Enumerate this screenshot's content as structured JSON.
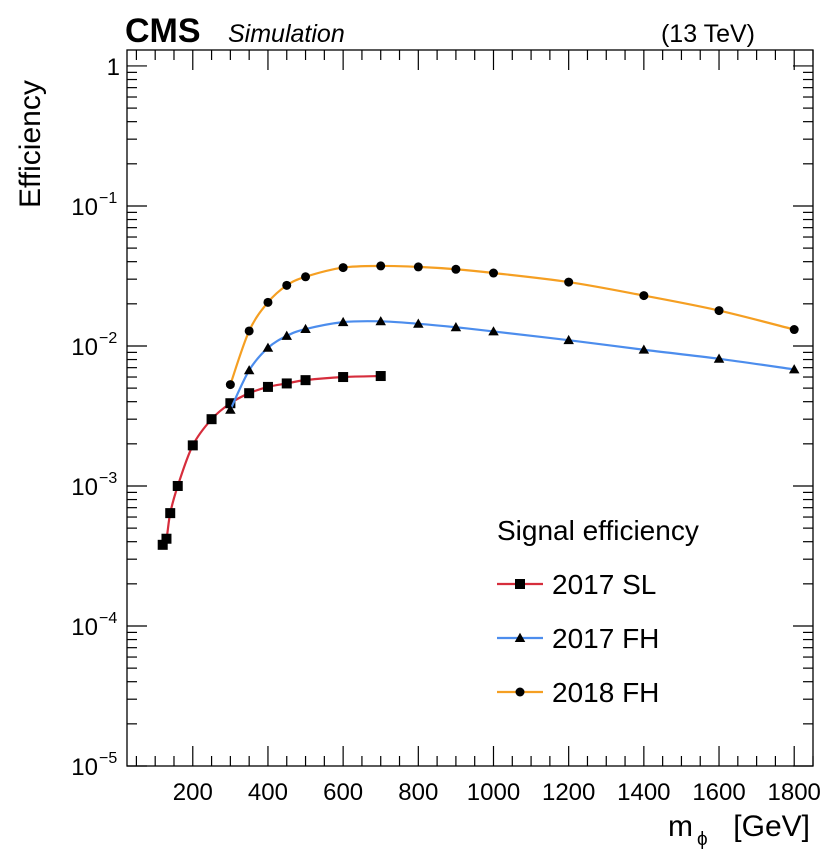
{
  "header": {
    "experiment": "CMS",
    "qualifier": "Simulation",
    "energy": "(13 TeV)"
  },
  "chart_data": {
    "type": "line",
    "xlabel_main": "m",
    "xlabel_sub": "ϕ",
    "xlabel_unit": "[GeV]",
    "ylabel": "Efficiency",
    "y_scale": "log",
    "xlim": [
      25,
      1850
    ],
    "ylim": [
      1e-05,
      1.3
    ],
    "x_ticks": [
      200,
      400,
      600,
      800,
      1000,
      1200,
      1400,
      1600,
      1800
    ],
    "y_ticks": [
      {
        "value": 1e-05,
        "base": "10",
        "exp": "−5"
      },
      {
        "value": 0.0001,
        "base": "10",
        "exp": "−4"
      },
      {
        "value": 0.001,
        "base": "10",
        "exp": "−3"
      },
      {
        "value": 0.01,
        "base": "10",
        "exp": "−2"
      },
      {
        "value": 0.1,
        "base": "10",
        "exp": "−1"
      },
      {
        "value": 1,
        "base": "1",
        "exp": ""
      }
    ],
    "legend": {
      "title": "Signal efficiency",
      "placement": "bottom-right"
    },
    "series": [
      {
        "name": "2017 SL",
        "color": "#d62d3c",
        "marker": "square",
        "x": [
          120,
          130,
          140,
          160,
          200,
          250,
          300,
          350,
          400,
          450,
          500,
          600,
          700
        ],
        "y": [
          0.00038,
          0.00042,
          0.00064,
          0.001,
          0.00195,
          0.003,
          0.0039,
          0.0046,
          0.0051,
          0.0054,
          0.0057,
          0.006,
          0.0061
        ]
      },
      {
        "name": "2017 FH",
        "color": "#4c8ded",
        "marker": "triangle",
        "x": [
          300,
          350,
          400,
          450,
          500,
          600,
          700,
          800,
          900,
          1000,
          1200,
          1400,
          1600,
          1800
        ],
        "y": [
          0.0035,
          0.0067,
          0.0097,
          0.0118,
          0.0132,
          0.0148,
          0.015,
          0.0144,
          0.0136,
          0.0127,
          0.011,
          0.0094,
          0.0081,
          0.0068
        ]
      },
      {
        "name": "2018 FH",
        "color": "#f59f22",
        "marker": "circle",
        "x": [
          300,
          350,
          400,
          450,
          500,
          600,
          700,
          800,
          900,
          1000,
          1200,
          1400,
          1600,
          1800
        ],
        "y": [
          0.0053,
          0.0128,
          0.0205,
          0.0271,
          0.0312,
          0.0363,
          0.0373,
          0.0367,
          0.0353,
          0.0332,
          0.0286,
          0.0229,
          0.0179,
          0.0131
        ]
      }
    ]
  }
}
